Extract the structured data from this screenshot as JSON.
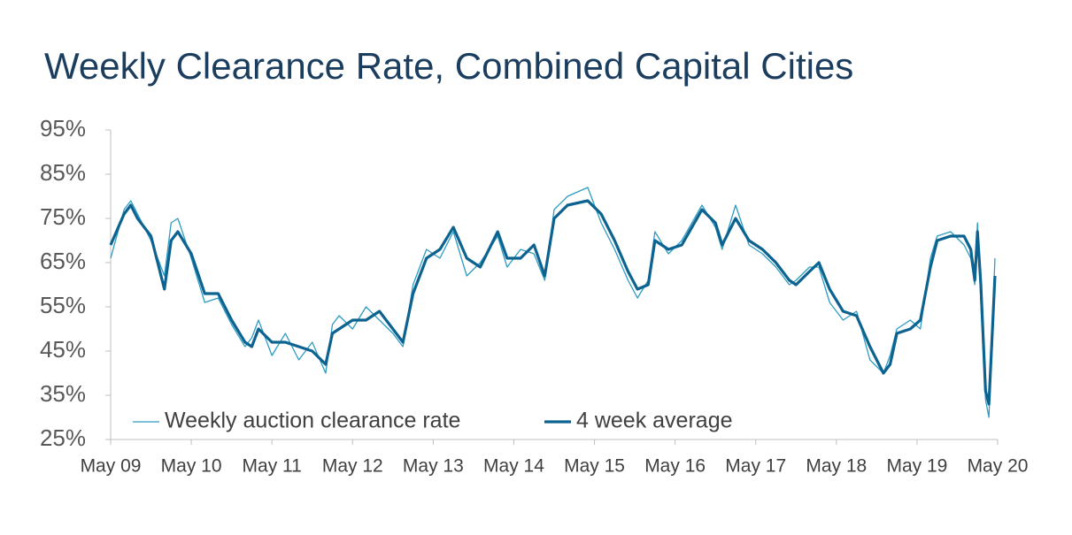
{
  "chart_data": {
    "type": "line",
    "title": "Weekly Clearance Rate, Combined Capital Cities",
    "x": [
      0,
      2,
      3,
      4,
      6,
      8,
      9,
      10,
      12,
      14,
      16,
      18,
      20,
      21,
      22,
      24,
      26,
      28,
      30,
      32,
      33,
      34,
      36,
      38,
      40,
      42,
      43.5,
      45,
      47,
      49,
      51,
      53,
      55,
      57.6,
      59,
      61,
      63,
      64.6,
      66,
      68,
      71,
      73,
      75,
      77,
      78.4,
      80,
      81,
      83,
      85,
      88,
      90,
      91,
      93,
      95,
      97,
      99,
      101,
      102,
      104,
      105.4,
      107,
      109,
      111,
      113,
      115,
      116,
      117,
      119,
      120.5,
      122,
      123,
      125,
      127,
      128,
      128.6,
      129,
      129.5,
      130.2,
      130.7,
      131.6
    ],
    "series": [
      {
        "name": "Weekly auction clearance rate",
        "color": "#2e9cc2",
        "values": [
          66,
          77,
          79,
          76,
          70,
          62,
          74,
          75,
          66,
          56,
          57,
          51,
          46,
          48,
          52,
          44,
          49,
          43,
          47,
          40,
          51,
          53,
          50,
          55,
          52,
          49,
          46,
          60,
          68,
          66,
          72,
          62,
          65,
          71,
          64,
          68,
          67,
          61,
          77,
          80,
          82,
          74,
          68,
          61,
          57,
          61,
          72,
          67,
          70,
          78,
          73,
          68,
          78,
          69,
          67,
          64,
          60,
          61,
          64,
          64,
          56,
          52,
          54,
          43,
          40,
          44,
          50,
          52,
          50,
          66,
          71,
          72,
          69,
          66,
          60,
          74,
          56,
          34,
          30,
          66
        ]
      },
      {
        "name": "4 week average",
        "color": "#0d6390",
        "values": [
          69,
          76,
          78,
          75,
          71,
          59,
          70,
          72,
          67,
          58,
          58,
          52,
          47,
          46,
          50,
          47,
          47,
          46,
          45,
          42,
          49,
          50,
          52,
          52,
          54,
          50,
          47,
          58,
          66,
          68,
          73,
          66,
          64,
          72,
          66,
          66,
          69,
          62,
          75,
          78,
          79,
          76,
          70,
          63,
          59,
          60,
          70,
          68,
          69,
          77,
          74,
          69,
          75,
          70,
          68,
          65,
          61,
          60,
          63,
          65,
          59,
          54,
          53,
          46,
          40,
          42,
          49,
          50,
          52,
          64,
          70,
          71,
          71,
          68,
          61,
          72,
          60,
          36,
          33,
          62
        ]
      }
    ],
    "xlim": [
      0,
      132
    ],
    "xticks": [
      {
        "value": 0,
        "label": "May 09"
      },
      {
        "value": 12,
        "label": "May 10"
      },
      {
        "value": 24,
        "label": "May 11"
      },
      {
        "value": 36,
        "label": "May 12"
      },
      {
        "value": 48,
        "label": "May 13"
      },
      {
        "value": 60,
        "label": "May 14"
      },
      {
        "value": 72,
        "label": "May 15"
      },
      {
        "value": 84,
        "label": "May 16"
      },
      {
        "value": 96,
        "label": "May 17"
      },
      {
        "value": 108,
        "label": "May 18"
      },
      {
        "value": 120,
        "label": "May 19"
      },
      {
        "value": 132,
        "label": "May 20"
      }
    ],
    "ylim": [
      25,
      95
    ],
    "yticks": [
      {
        "value": 25,
        "label": "25%"
      },
      {
        "value": 35,
        "label": "35%"
      },
      {
        "value": 45,
        "label": "45%"
      },
      {
        "value": 55,
        "label": "55%"
      },
      {
        "value": 65,
        "label": "65%"
      },
      {
        "value": 75,
        "label": "75%"
      },
      {
        "value": 85,
        "label": "85%"
      },
      {
        "value": 95,
        "label": "95%"
      }
    ],
    "legend": "lower left"
  }
}
